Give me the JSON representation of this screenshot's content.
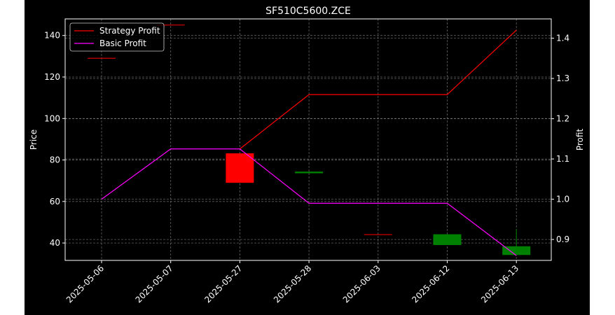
{
  "chart_data": {
    "type": "candlestick",
    "title": "SF510C5600.ZCE",
    "xlabel": "",
    "ylabel_left": "Price",
    "ylabel_right": "Profit",
    "categories": [
      "2025-05-06",
      "2025-05-07",
      "2025-05-27",
      "2025-05-28",
      "2025-06-03",
      "2025-06-12",
      "2025-06-13"
    ],
    "ylim_left": [
      31.6,
      148
    ],
    "ylim_right": [
      0.848,
      1.448
    ],
    "yticks_left": [
      40,
      60,
      80,
      100,
      120,
      140
    ],
    "yticks_right": [
      0.9,
      1.0,
      1.1,
      1.2,
      1.3,
      1.4
    ],
    "grid": true,
    "legend_position": "upper-left",
    "candles": [
      {
        "date": "2025-05-06",
        "open": 129.2,
        "close": 129.2,
        "high": 129.2,
        "low": 129.2,
        "color": "#ff0000"
      },
      {
        "date": "2025-05-07",
        "open": 145.2,
        "close": 145.2,
        "high": 145.2,
        "low": 145.2,
        "color": "#ff0000"
      },
      {
        "date": "2025-05-27",
        "open": 83.2,
        "close": 69.0,
        "high": 83.2,
        "low": 69.0,
        "color": "#ff0000"
      },
      {
        "date": "2025-05-28",
        "open": 73.6,
        "close": 74.4,
        "high": 74.4,
        "low": 73.6,
        "color": "#008000"
      },
      {
        "date": "2025-06-03",
        "open": 44.2,
        "close": 44.2,
        "high": 44.2,
        "low": 44.2,
        "color": "#ff0000"
      },
      {
        "date": "2025-06-12",
        "open": 39.0,
        "close": 44.2,
        "high": 44.2,
        "low": 39.0,
        "color": "#008000"
      },
      {
        "date": "2025-06-13",
        "open": 34.2,
        "close": 38.4,
        "high": 46.6,
        "low": 34.2,
        "color": "#008000"
      }
    ],
    "series": [
      {
        "name": "Strategy Profit",
        "color": "#ff0000",
        "axis": "right",
        "values": [
          null,
          null,
          1.125,
          1.26,
          1.26,
          1.26,
          1.42
        ]
      },
      {
        "name": "Basic Profit",
        "color": "#ff00ff",
        "axis": "right",
        "values": [
          1.0,
          1.125,
          1.125,
          0.99,
          0.99,
          0.99,
          0.86
        ]
      }
    ]
  }
}
